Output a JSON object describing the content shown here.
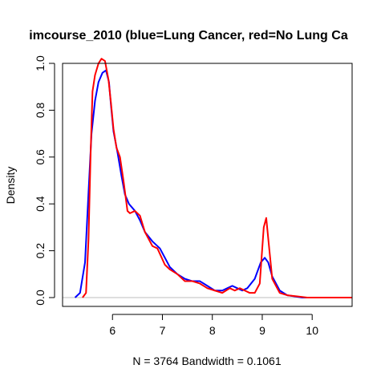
{
  "chart_data": {
    "type": "line",
    "title": "imcourse_2010 (blue=Lung Cancer, red=No Lung Ca",
    "xlabel": "N = 3764   Bandwidth = 0.1061",
    "ylabel": "Density",
    "xlim": [
      5.0,
      10.8
    ],
    "ylim": [
      0.0,
      1.0
    ],
    "x_ticks": [
      6,
      7,
      8,
      9,
      10
    ],
    "x_tick_labels": [
      "6",
      "7",
      "8",
      "9",
      "10"
    ],
    "y_ticks": [
      0.0,
      0.2,
      0.4,
      0.6,
      0.8,
      1.0
    ],
    "y_tick_labels": [
      "0.0",
      "0.2",
      "0.4",
      "0.6",
      "0.8",
      "1.0"
    ],
    "grid": false,
    "baseline": 0,
    "series": [
      {
        "color": "#0000ff",
        "x": [
          5.25,
          5.35,
          5.45,
          5.52,
          5.58,
          5.65,
          5.72,
          5.8,
          5.87,
          5.93,
          5.97,
          6.02,
          6.1,
          6.18,
          6.25,
          6.33,
          6.45,
          6.55,
          6.65,
          6.8,
          6.95,
          7.05,
          7.15,
          7.3,
          7.45,
          7.6,
          7.75,
          7.9,
          8.05,
          8.2,
          8.3,
          8.4,
          8.5,
          8.6,
          8.7,
          8.85,
          8.97,
          9.05,
          9.12,
          9.2,
          9.35,
          9.5,
          9.65,
          9.8,
          10.0,
          10.2,
          10.4,
          10.6,
          10.8
        ],
        "y": [
          0.0,
          0.02,
          0.15,
          0.45,
          0.7,
          0.84,
          0.92,
          0.96,
          0.97,
          0.92,
          0.82,
          0.71,
          0.62,
          0.52,
          0.44,
          0.4,
          0.37,
          0.33,
          0.28,
          0.24,
          0.21,
          0.17,
          0.13,
          0.1,
          0.08,
          0.07,
          0.07,
          0.05,
          0.03,
          0.03,
          0.04,
          0.05,
          0.04,
          0.03,
          0.04,
          0.08,
          0.15,
          0.17,
          0.15,
          0.09,
          0.03,
          0.01,
          0.005,
          0.0,
          0.0,
          0.0,
          0.0,
          0.0,
          0.0
        ]
      },
      {
        "color": "#ff0000",
        "x": [
          5.4,
          5.47,
          5.52,
          5.56,
          5.6,
          5.65,
          5.72,
          5.78,
          5.85,
          5.92,
          5.97,
          6.02,
          6.08,
          6.15,
          6.22,
          6.3,
          6.35,
          6.45,
          6.55,
          6.65,
          6.8,
          6.9,
          7.05,
          7.15,
          7.3,
          7.45,
          7.6,
          7.75,
          7.9,
          8.05,
          8.2,
          8.35,
          8.45,
          8.55,
          8.65,
          8.75,
          8.85,
          8.95,
          9.03,
          9.08,
          9.13,
          9.2,
          9.35,
          9.5,
          9.7,
          9.9,
          10.2,
          10.5,
          10.8
        ],
        "y": [
          0.0,
          0.02,
          0.25,
          0.6,
          0.88,
          0.95,
          1.0,
          1.02,
          1.01,
          0.93,
          0.83,
          0.72,
          0.64,
          0.6,
          0.5,
          0.37,
          0.36,
          0.37,
          0.35,
          0.28,
          0.22,
          0.21,
          0.14,
          0.12,
          0.1,
          0.07,
          0.07,
          0.06,
          0.04,
          0.03,
          0.02,
          0.04,
          0.03,
          0.04,
          0.03,
          0.02,
          0.02,
          0.06,
          0.3,
          0.34,
          0.23,
          0.08,
          0.02,
          0.01,
          0.005,
          0.0,
          0.0,
          0.0,
          0.0
        ]
      }
    ]
  }
}
